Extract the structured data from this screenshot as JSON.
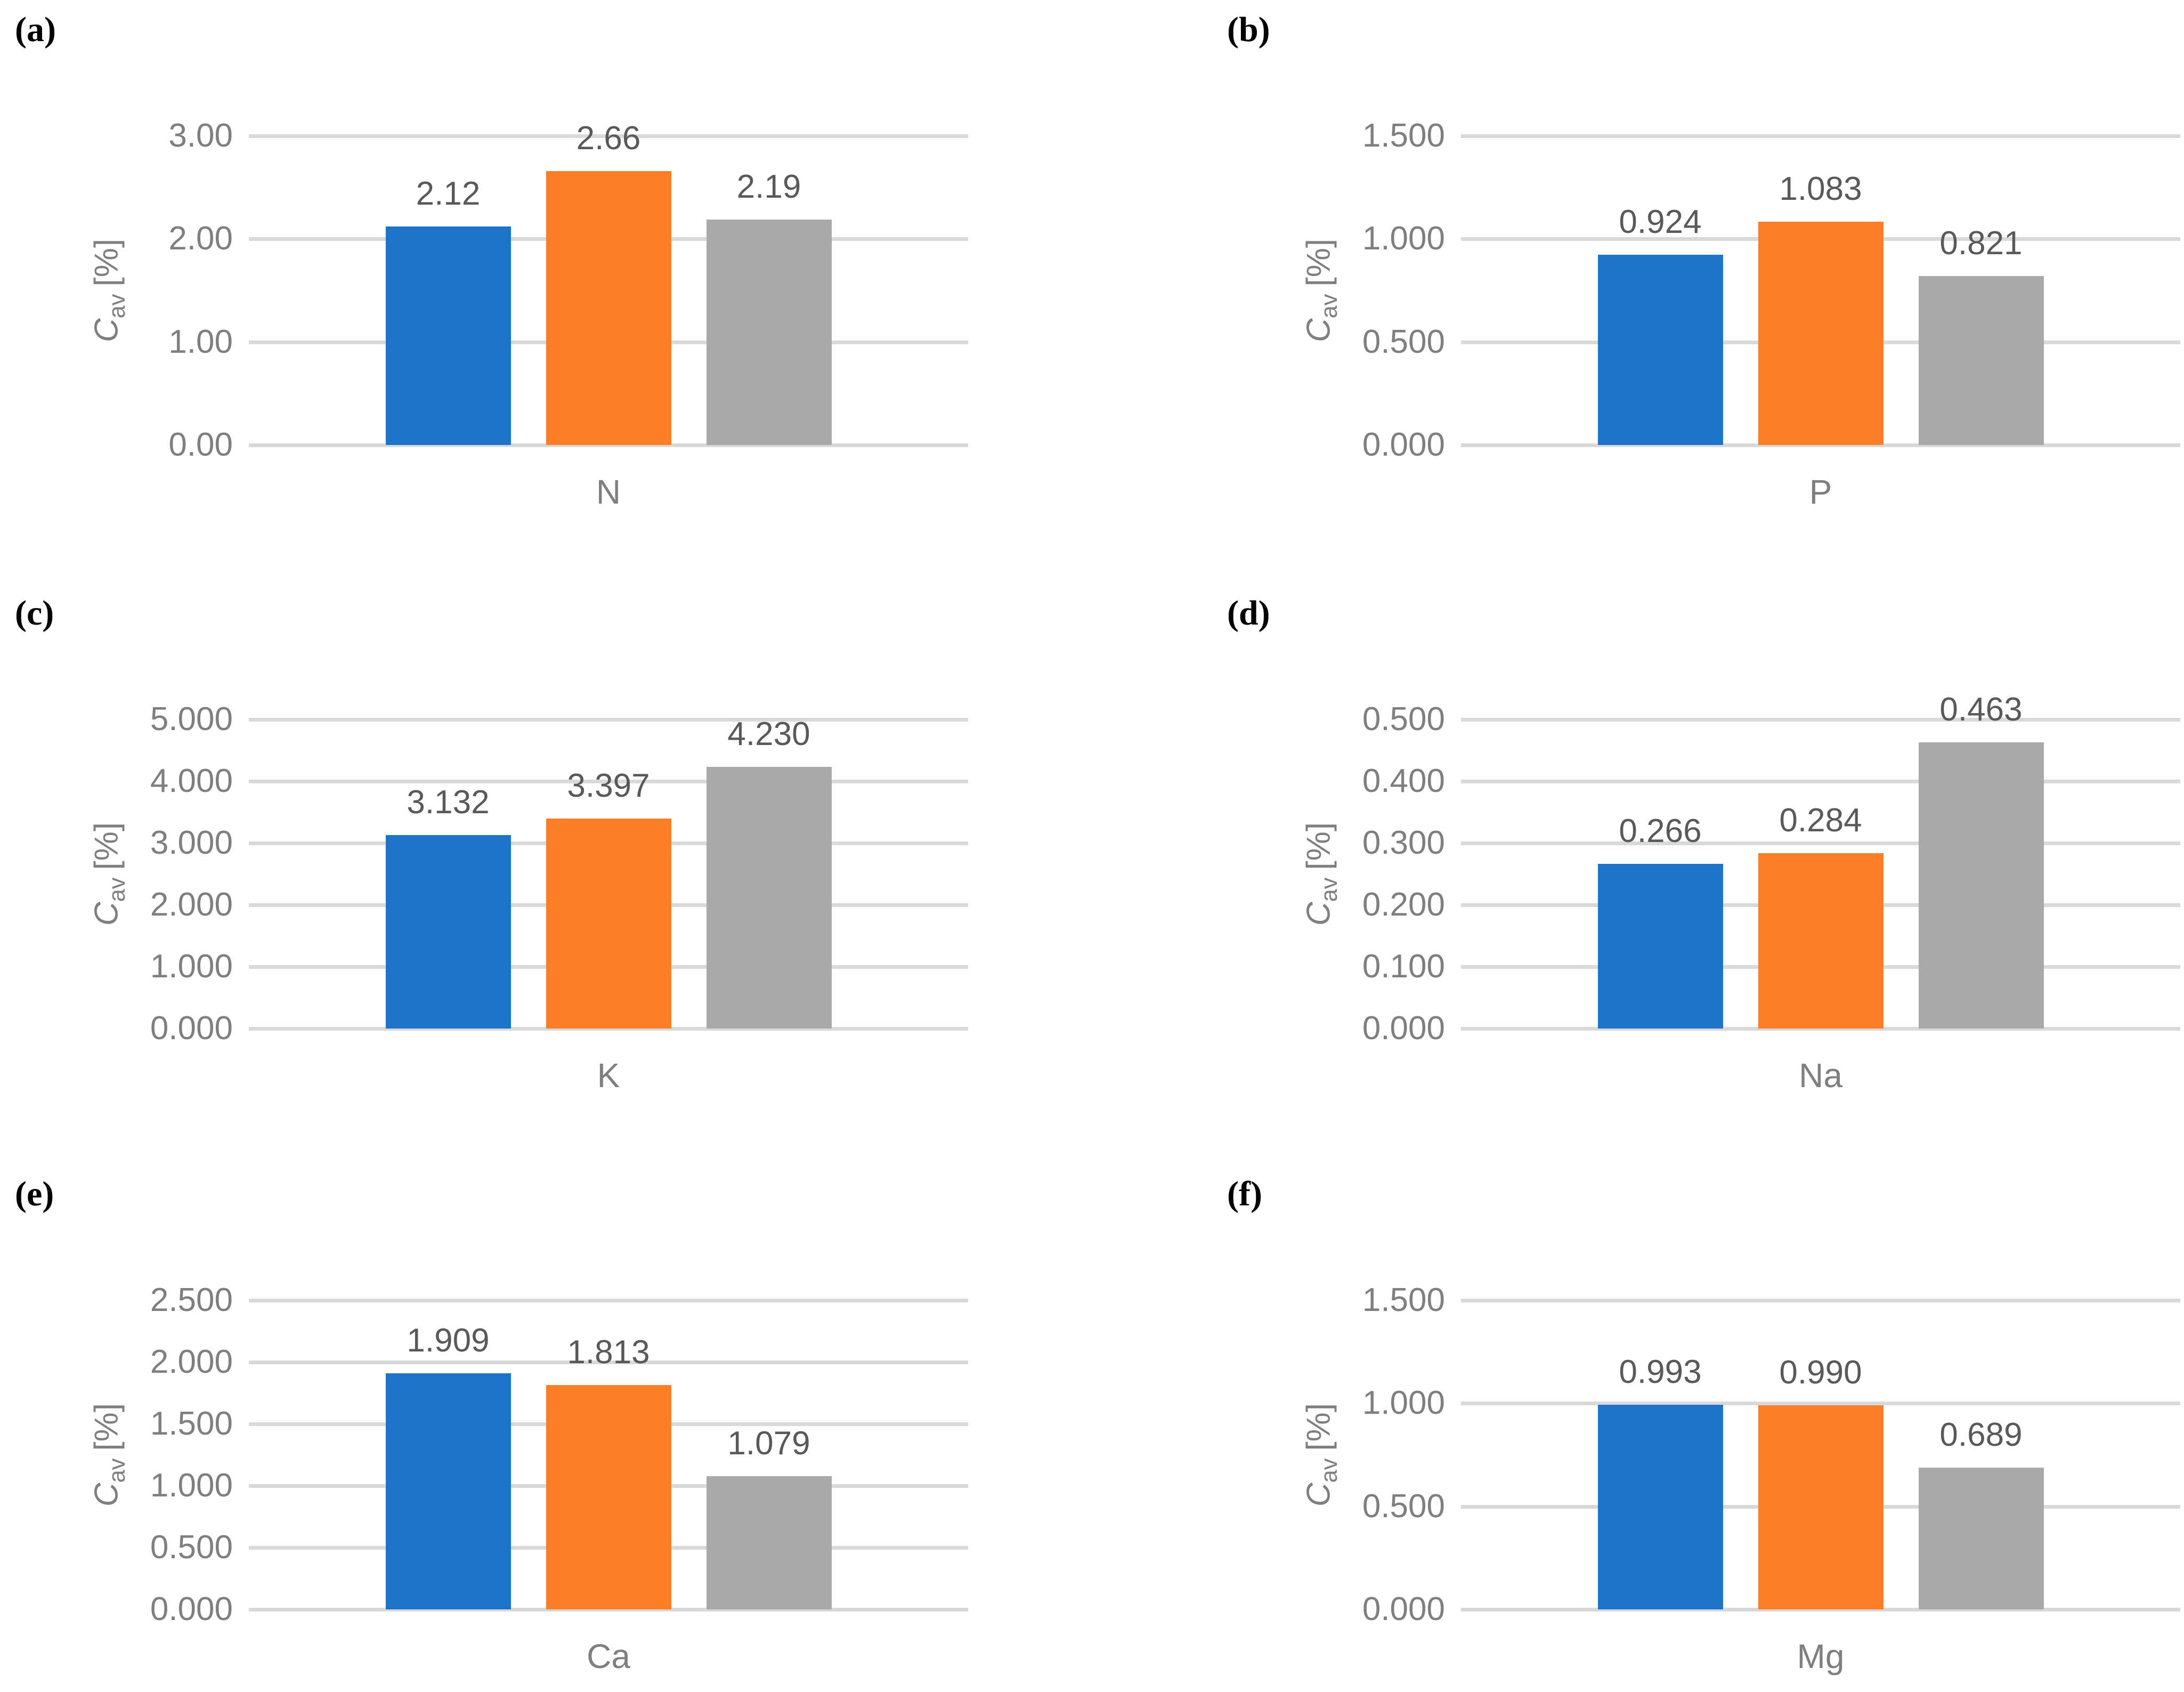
{
  "ylabel": {
    "symbol": "C",
    "subscript": "av",
    "unit": "[%]"
  },
  "colors": {
    "series": [
      "#1c73c8",
      "#fc7e27",
      "#a9a9a9"
    ],
    "gridline": "#d9d9d9",
    "tick_text": "#7f7f7f",
    "value_text": "#595959",
    "panel_text": "#000000"
  },
  "chart_data": [
    {
      "type": "bar",
      "panel": "(a)",
      "category": "N",
      "values": [
        2.12,
        2.66,
        2.19
      ],
      "labels": [
        "2.12",
        "2.66",
        "2.19"
      ],
      "ylabel": "Cav [%]",
      "ylim": [
        0,
        3
      ],
      "ticks": [
        "3.00",
        "2.00",
        "1.00",
        "0.00"
      ],
      "grid": "horizontal",
      "legend": "none"
    },
    {
      "type": "bar",
      "panel": "(b)",
      "category": "P",
      "values": [
        0.924,
        1.083,
        0.821
      ],
      "labels": [
        "0.924",
        "1.083",
        "0.821"
      ],
      "ylabel": "Cav [%]",
      "ylim": [
        0,
        1.5
      ],
      "ticks": [
        "1.500",
        "1.000",
        "0.500",
        "0.000"
      ],
      "grid": "horizontal",
      "legend": "none"
    },
    {
      "type": "bar",
      "panel": "(c)",
      "category": "K",
      "values": [
        3.132,
        3.397,
        4.23
      ],
      "labels": [
        "3.132",
        "3.397",
        "4.230"
      ],
      "ylabel": "Cav [%]",
      "ylim": [
        0,
        5
      ],
      "ticks": [
        "5.000",
        "4.000",
        "3.000",
        "2.000",
        "1.000",
        "0.000"
      ],
      "grid": "horizontal",
      "legend": "none"
    },
    {
      "type": "bar",
      "panel": "(d)",
      "category": "Na",
      "values": [
        0.266,
        0.284,
        0.463
      ],
      "labels": [
        "0.266",
        "0.284",
        "0.463"
      ],
      "ylabel": "Cav [%]",
      "ylim": [
        0,
        0.5
      ],
      "ticks": [
        "0.500",
        "0.400",
        "0.300",
        "0.200",
        "0.100",
        "0.000"
      ],
      "grid": "horizontal",
      "legend": "none"
    },
    {
      "type": "bar",
      "panel": "(e)",
      "category": "Ca",
      "values": [
        1.909,
        1.813,
        1.079
      ],
      "labels": [
        "1.909",
        "1.813",
        "1.079"
      ],
      "ylabel": "Cav [%]",
      "ylim": [
        0,
        2.5
      ],
      "ticks": [
        "2.500",
        "2.000",
        "1.500",
        "1.000",
        "0.500",
        "0.000"
      ],
      "grid": "horizontal",
      "legend": "none"
    },
    {
      "type": "bar",
      "panel": "(f)",
      "category": "Mg",
      "values": [
        0.993,
        0.99,
        0.689
      ],
      "labels": [
        "0.993",
        "0.990",
        "0.689"
      ],
      "ylabel": "Cav [%]",
      "ylim": [
        0,
        1.5
      ],
      "ticks": [
        "1.500",
        "1.000",
        "0.500",
        "0.000"
      ],
      "grid": "horizontal",
      "legend": "none"
    }
  ]
}
